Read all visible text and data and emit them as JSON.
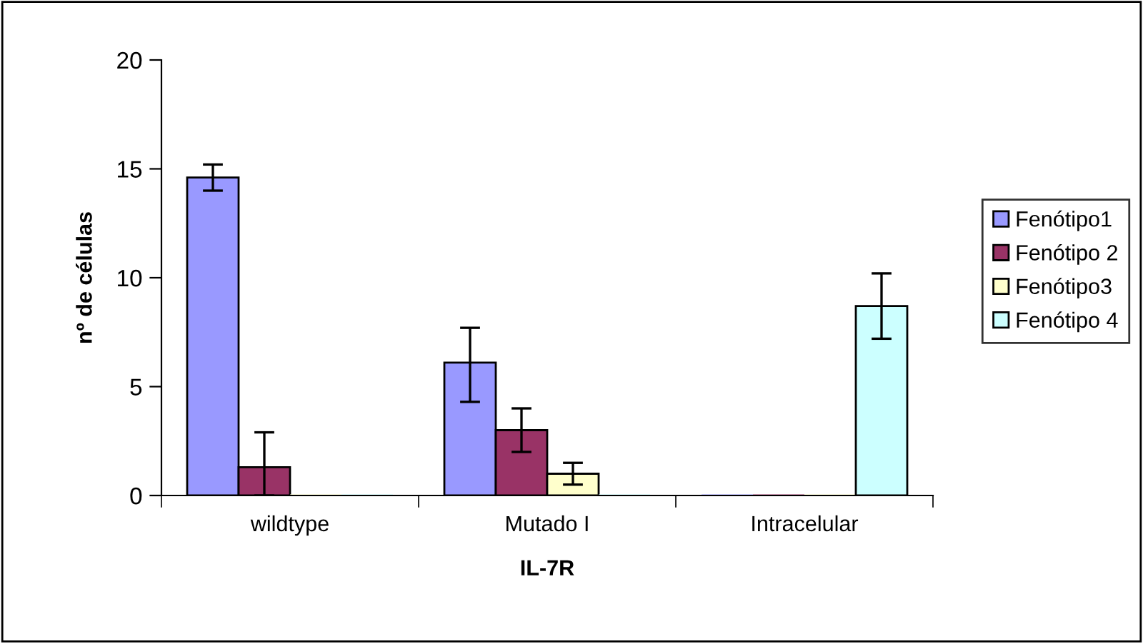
{
  "chart_data": {
    "type": "bar",
    "xlabel": "IL-7R",
    "ylabel": "nº de células",
    "categories": [
      "wildtype",
      "Mutado I",
      "Intracelular"
    ],
    "series": [
      {
        "name": "Fenótipo1",
        "color": "#9999ff",
        "values": [
          14.6,
          6.1,
          0
        ],
        "errors": [
          0.6,
          [
            4.3,
            7.7
          ],
          null
        ]
      },
      {
        "name": "Fenótipo 2",
        "color": "#993366",
        "values": [
          1.3,
          3.0,
          0
        ],
        "errors": [
          [
            0,
            2.9
          ],
          1.0,
          null
        ]
      },
      {
        "name": "Fenótipo3",
        "color": "#ffffcc",
        "values": [
          0,
          1.0,
          0
        ],
        "errors": [
          null,
          0.5,
          null
        ]
      },
      {
        "name": "Fenótipo 4",
        "color": "#ccffff",
        "values": [
          0,
          0,
          8.7
        ],
        "errors": [
          null,
          null,
          1.5
        ]
      }
    ],
    "ylim": [
      0,
      20
    ],
    "yticks": [
      0,
      5,
      10,
      15,
      20
    ],
    "grid": false,
    "legend": "right"
  }
}
